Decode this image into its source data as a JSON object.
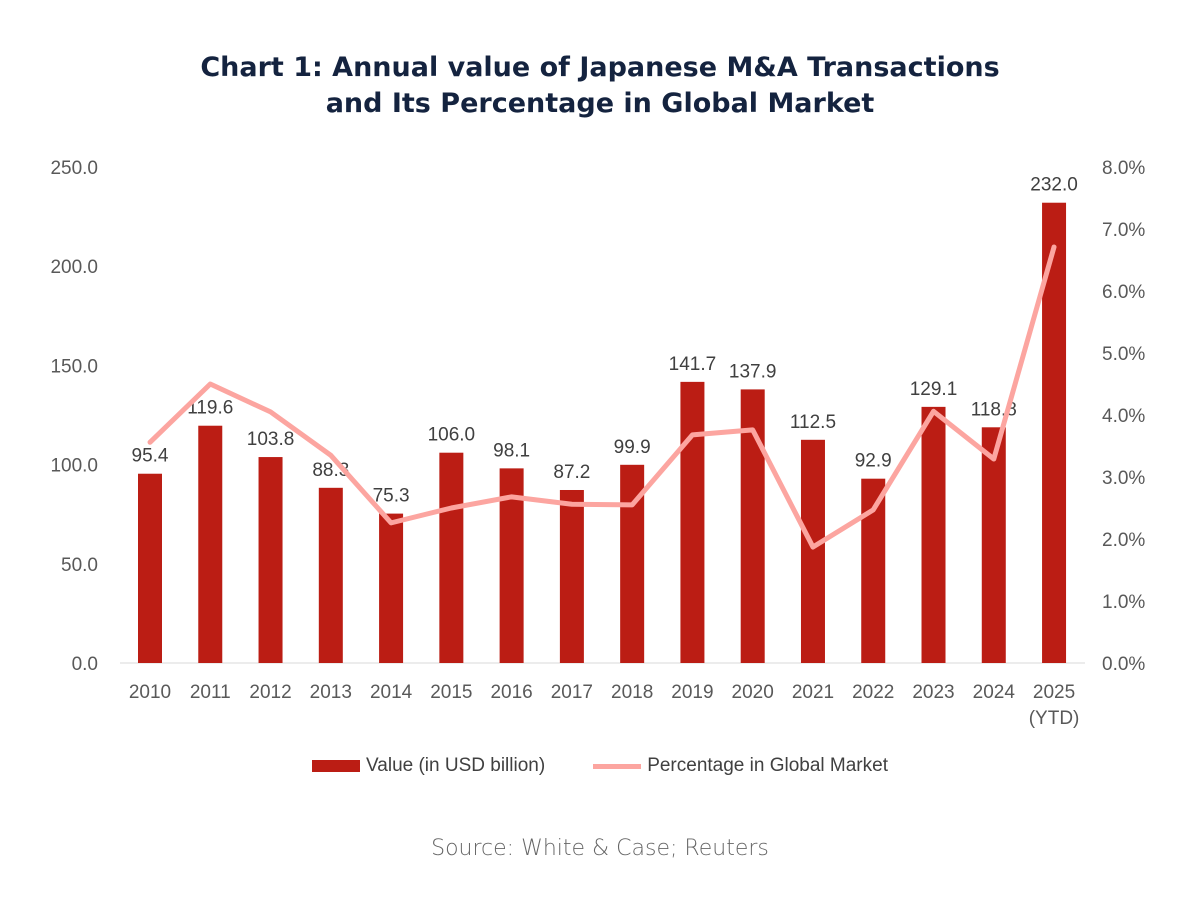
{
  "chart_data": {
    "type": "bar",
    "title_line1": "Chart 1: Annual value of Japanese M&A Transactions",
    "title_line2": "and Its Percentage in Global Market",
    "categories": [
      "2010",
      "2011",
      "2012",
      "2013",
      "2014",
      "2015",
      "2016",
      "2017",
      "2018",
      "2019",
      "2020",
      "2021",
      "2022",
      "2023",
      "2024",
      "2025"
    ],
    "category_sublabels": {
      "2025": "(YTD)"
    },
    "series": [
      {
        "name": "Value (in USD billion)",
        "type": "bar",
        "axis": "left",
        "color": "#bb1d14",
        "values": [
          95.4,
          119.6,
          103.8,
          88.3,
          75.3,
          106.0,
          98.1,
          87.2,
          99.9,
          141.7,
          137.9,
          112.5,
          92.9,
          129.1,
          118.8,
          232.0
        ],
        "labels": [
          "95.4",
          "119.6",
          "103.8",
          "88.3",
          "75.3",
          "106.0",
          "98.1",
          "87.2",
          "99.9",
          "141.7",
          "137.9",
          "112.5",
          "92.9",
          "129.1",
          "118.8",
          "232.0"
        ]
      },
      {
        "name": "Percentage in Global Market",
        "type": "line",
        "axis": "right",
        "color": "#fca5a0",
        "values": [
          3.56,
          4.5,
          4.05,
          3.35,
          2.26,
          2.5,
          2.68,
          2.56,
          2.55,
          3.68,
          3.76,
          1.87,
          2.47,
          4.06,
          3.29,
          6.71
        ]
      }
    ],
    "y_left": {
      "lim": [
        0,
        250
      ],
      "ticks": [
        "0.0",
        "50.0",
        "100.0",
        "150.0",
        "200.0",
        "250.0"
      ]
    },
    "y_right": {
      "lim": [
        0,
        8
      ],
      "ticks": [
        "0.0%",
        "1.0%",
        "2.0%",
        "3.0%",
        "4.0%",
        "5.0%",
        "6.0%",
        "7.0%",
        "8.0%"
      ]
    },
    "grid": false,
    "legend": "bottom",
    "source": "Source: White & Case; Reuters"
  }
}
